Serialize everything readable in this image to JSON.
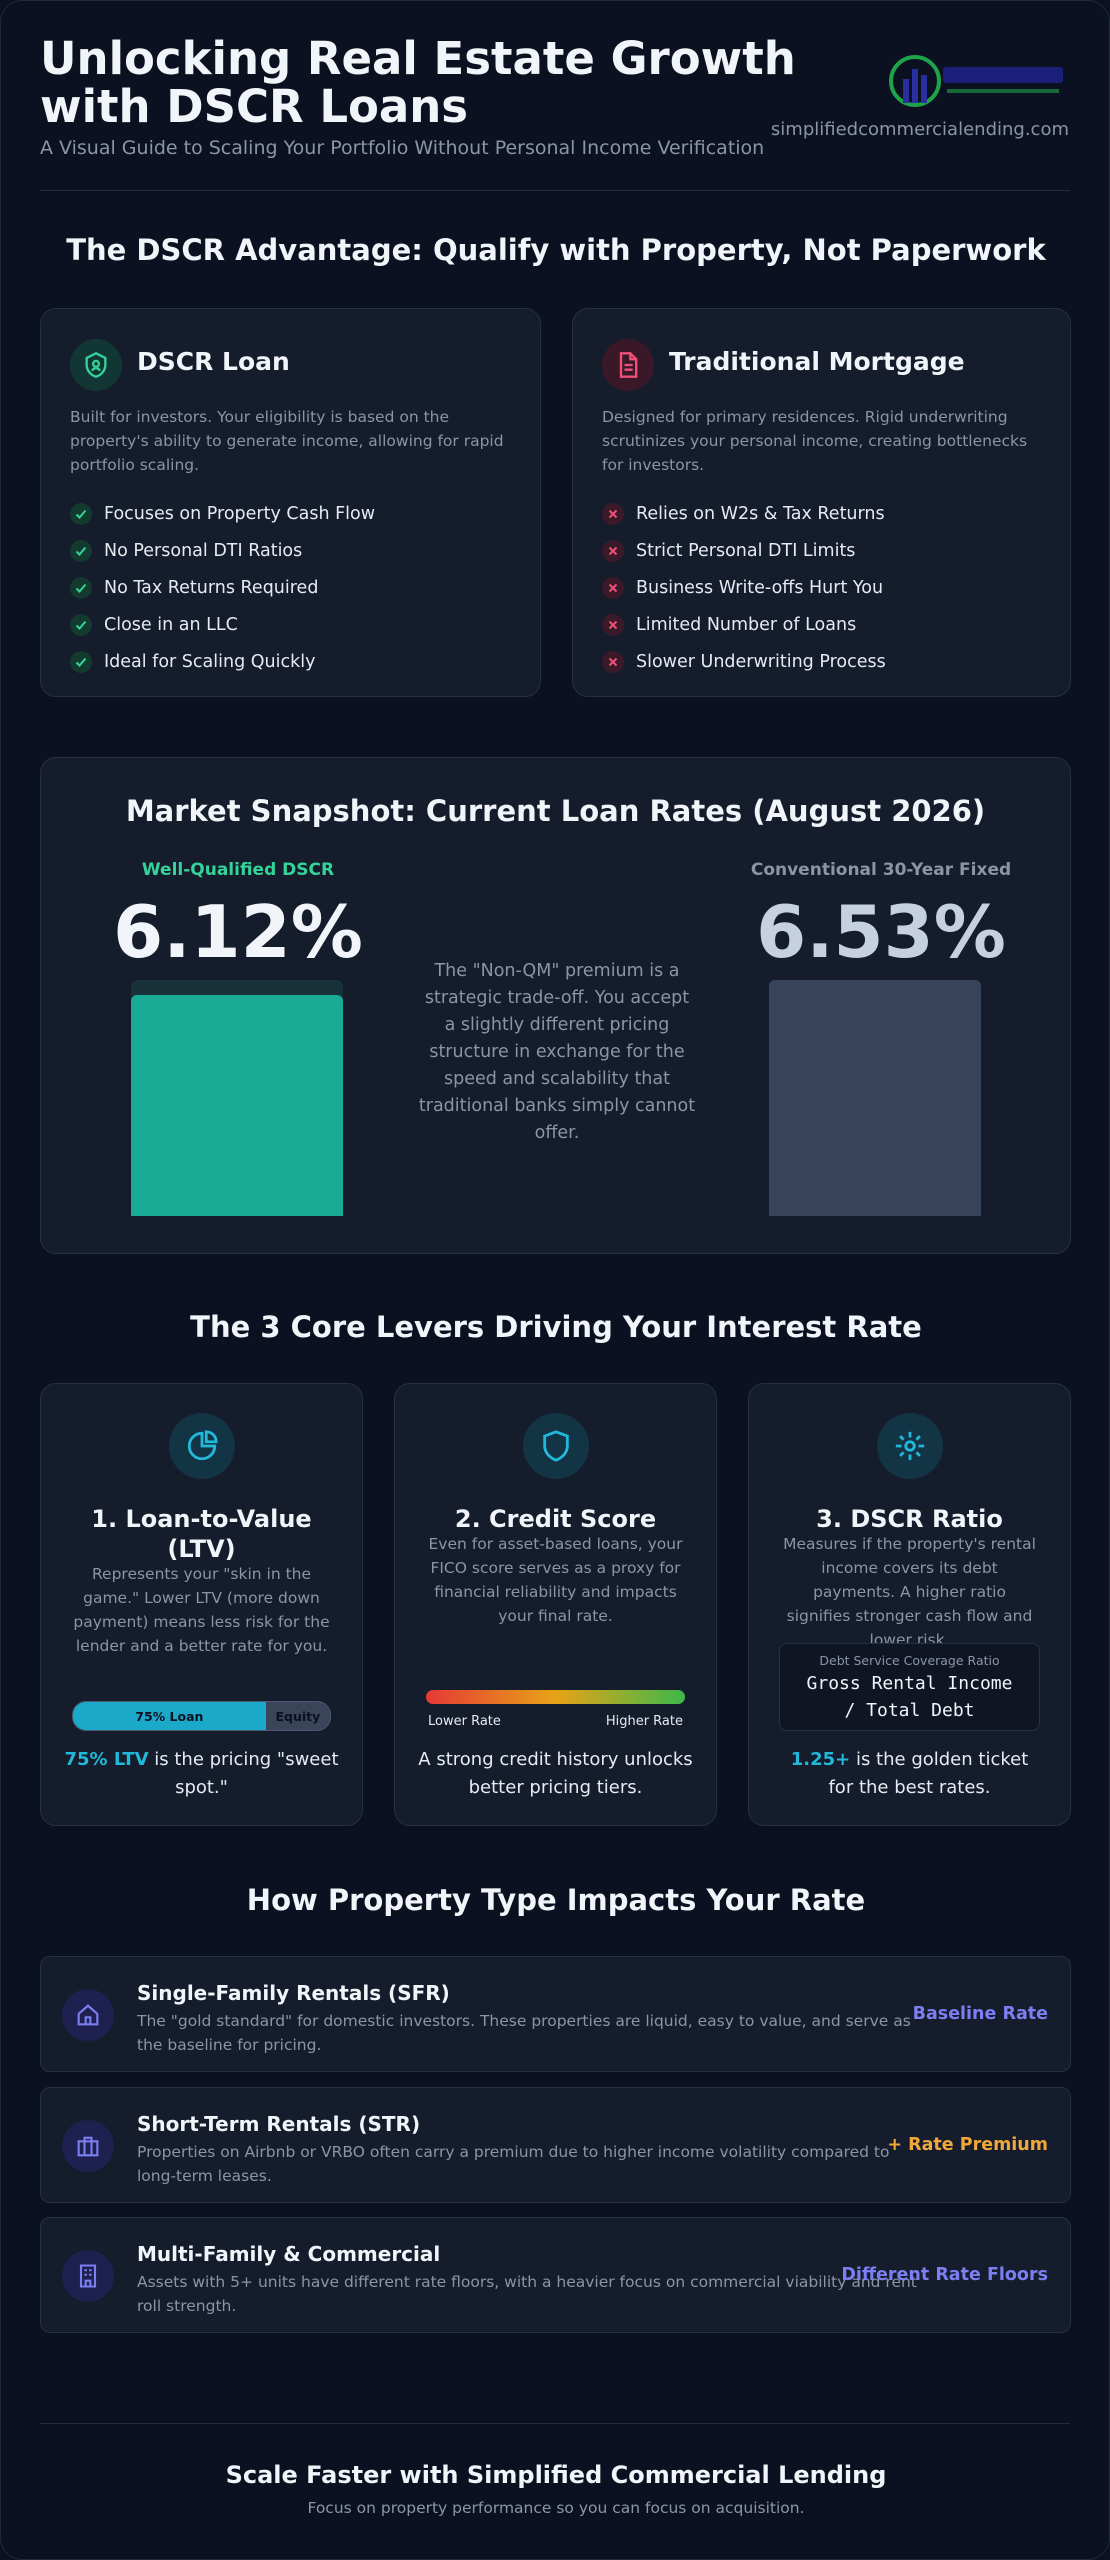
{
  "header": {
    "title": "Unlocking Real Estate Growth with DSCR Loans",
    "subtitle": "A Visual Guide to Scaling Your Portfolio Without Personal Income Verification",
    "website": "simplifiedcommercialending.com"
  },
  "advantage": {
    "heading": "The DSCR Advantage: Qualify with Property, Not Paperwork",
    "cards": [
      {
        "title": "DSCR Loan",
        "description": "Built for investors. Your eligibility is based on the property's ability to generate income, allowing for rapid portfolio scaling.",
        "items": [
          "Focuses on Property Cash Flow",
          "No Personal DTI Ratios",
          "No Tax Returns Required",
          "Close in an LLC",
          "Ideal for Scaling Quickly"
        ]
      },
      {
        "title": "Traditional Mortgage",
        "description": "Designed for primary residences. Rigid underwriting scrutinizes your personal income, creating bottlenecks for investors.",
        "items": [
          "Relies on W2s & Tax Returns",
          "Strict Personal DTI Limits",
          "Business Write-offs Hurt You",
          "Limited Number of Loans",
          "Slower Underwriting Process"
        ]
      }
    ]
  },
  "market": {
    "heading": "Market Snapshot: Current Loan Rates (August 2026)",
    "dscr": {
      "label": "Well-Qualified DSCR",
      "rate": {
        "value": 6.12,
        "label": "6.12%"
      }
    },
    "note": "The \"Non-QM\" premium is a strategic trade-off. You accept a slightly different pricing structure in exchange for the speed and scalability that traditional banks simply cannot offer.",
    "conventional": {
      "label": "Conventional 30-Year Fixed",
      "rate": {
        "value": 6.53,
        "label": "6.53%"
      }
    }
  },
  "levers": {
    "heading": "The 3 Core Levers Driving Your Interest Rate",
    "cards": [
      {
        "title": "1. Loan-to-Value (LTV)",
        "description": "Represents your \"skin in the game.\" Lower LTV (more down payment) means less risk for the lender and a better rate for you.",
        "ltv": {
          "loan": {
            "value": 75,
            "label": "75% Loan"
          },
          "equity": "Equity"
        },
        "highlight": "75% LTV",
        "footer": " is the pricing \"sweet spot.\""
      },
      {
        "title": "2. Credit Score",
        "description": "Even for asset-based loans, your FICO score serves as a proxy for financial reliability and impacts your final rate.",
        "scale_low": "Lower Rate",
        "scale_high": "Higher Rate",
        "footer": "A strong credit history unlocks better pricing tiers."
      },
      {
        "title": "3. DSCR Ratio",
        "description": "Measures if the property's rental income covers its debt payments. A higher ratio signifies stronger cash flow and lower risk.",
        "formula_caption": "Debt Service Coverage Ratio",
        "formula": "Gross Rental Income / Total Debt",
        "highlight": "1.25+",
        "footer": " is the golden ticket for the best rates."
      }
    ]
  },
  "property_types": {
    "heading": "How Property Type Impacts Your Rate",
    "rows": [
      {
        "title": "Single-Family Rentals (SFR)",
        "description": "The \"gold standard\" for domestic investors. These properties are liquid, easy to value, and serve as the baseline for pricing.",
        "tag": "Baseline Rate",
        "color": "#7b7ff2"
      },
      {
        "title": "Short-Term Rentals (STR)",
        "description": "Properties on Airbnb or VRBO often carry a premium due to higher income volatility compared to long-term leases.",
        "tag": "+ Rate Premium",
        "color": "#f0a83a"
      },
      {
        "title": "Multi-Family & Commercial",
        "description": "Assets with 5+ units have different rate floors, with a heavier focus on commercial viability and rent roll strength.",
        "tag": "Different Rate Floors",
        "color": "#7b7ff2"
      }
    ]
  },
  "footer": {
    "title": "Scale Faster with Simplified Commercial Lending",
    "subtitle": "Focus on property performance so you can focus on acquisition."
  }
}
